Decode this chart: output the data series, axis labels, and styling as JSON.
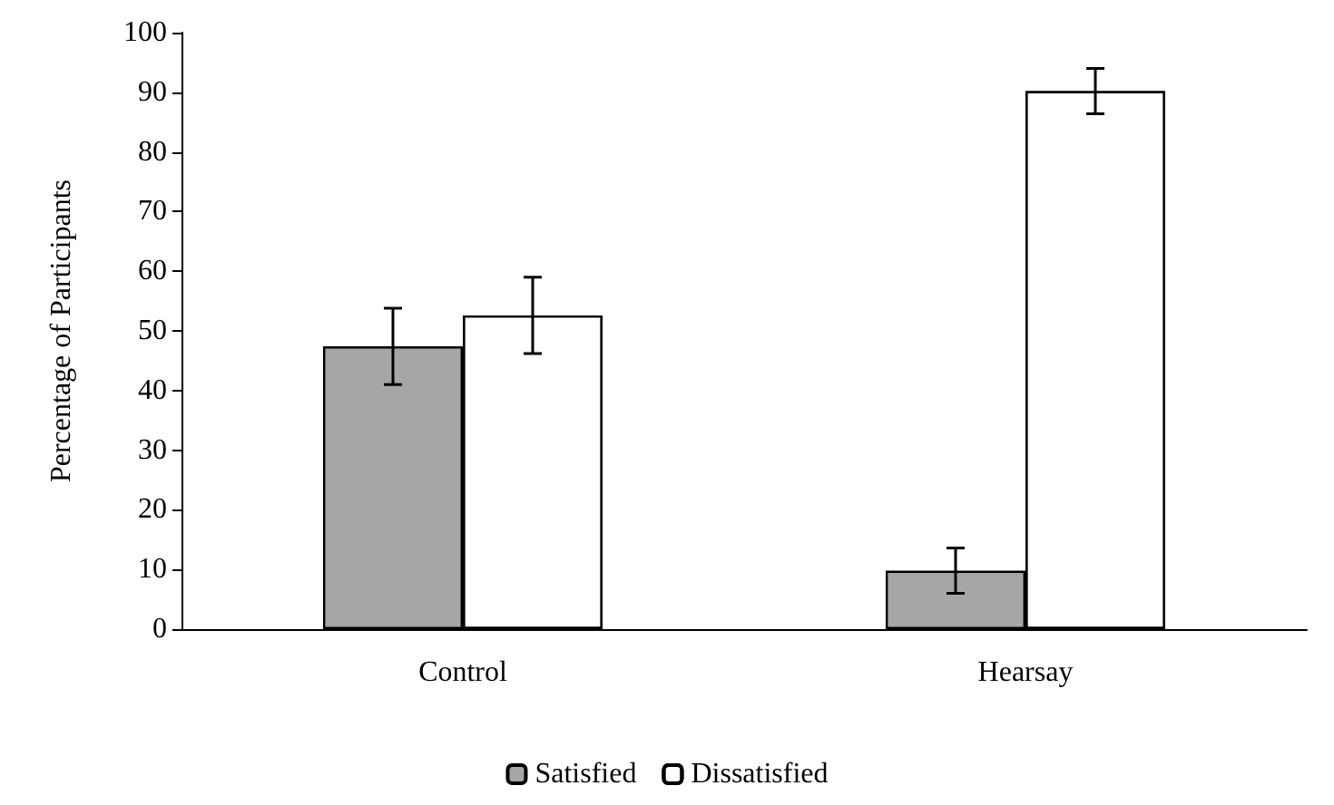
{
  "chart_data": {
    "type": "bar",
    "ylabel": "Percentage of Participants",
    "categories": [
      "Control",
      "Hearsay"
    ],
    "series": [
      {
        "name": "Satisfied",
        "color": "#a6a6a6",
        "values": [
          47.4,
          9.8
        ],
        "errors": [
          6.4,
          3.8
        ]
      },
      {
        "name": "Dissatisfied",
        "color": "#ffffff",
        "values": [
          52.6,
          90.2
        ],
        "errors": [
          6.4,
          3.8
        ]
      }
    ],
    "ylim": [
      0,
      100
    ],
    "yticks": [
      0,
      10,
      20,
      30,
      40,
      50,
      60,
      70,
      80,
      90,
      100
    ],
    "grid": false,
    "legend": "bottom"
  }
}
